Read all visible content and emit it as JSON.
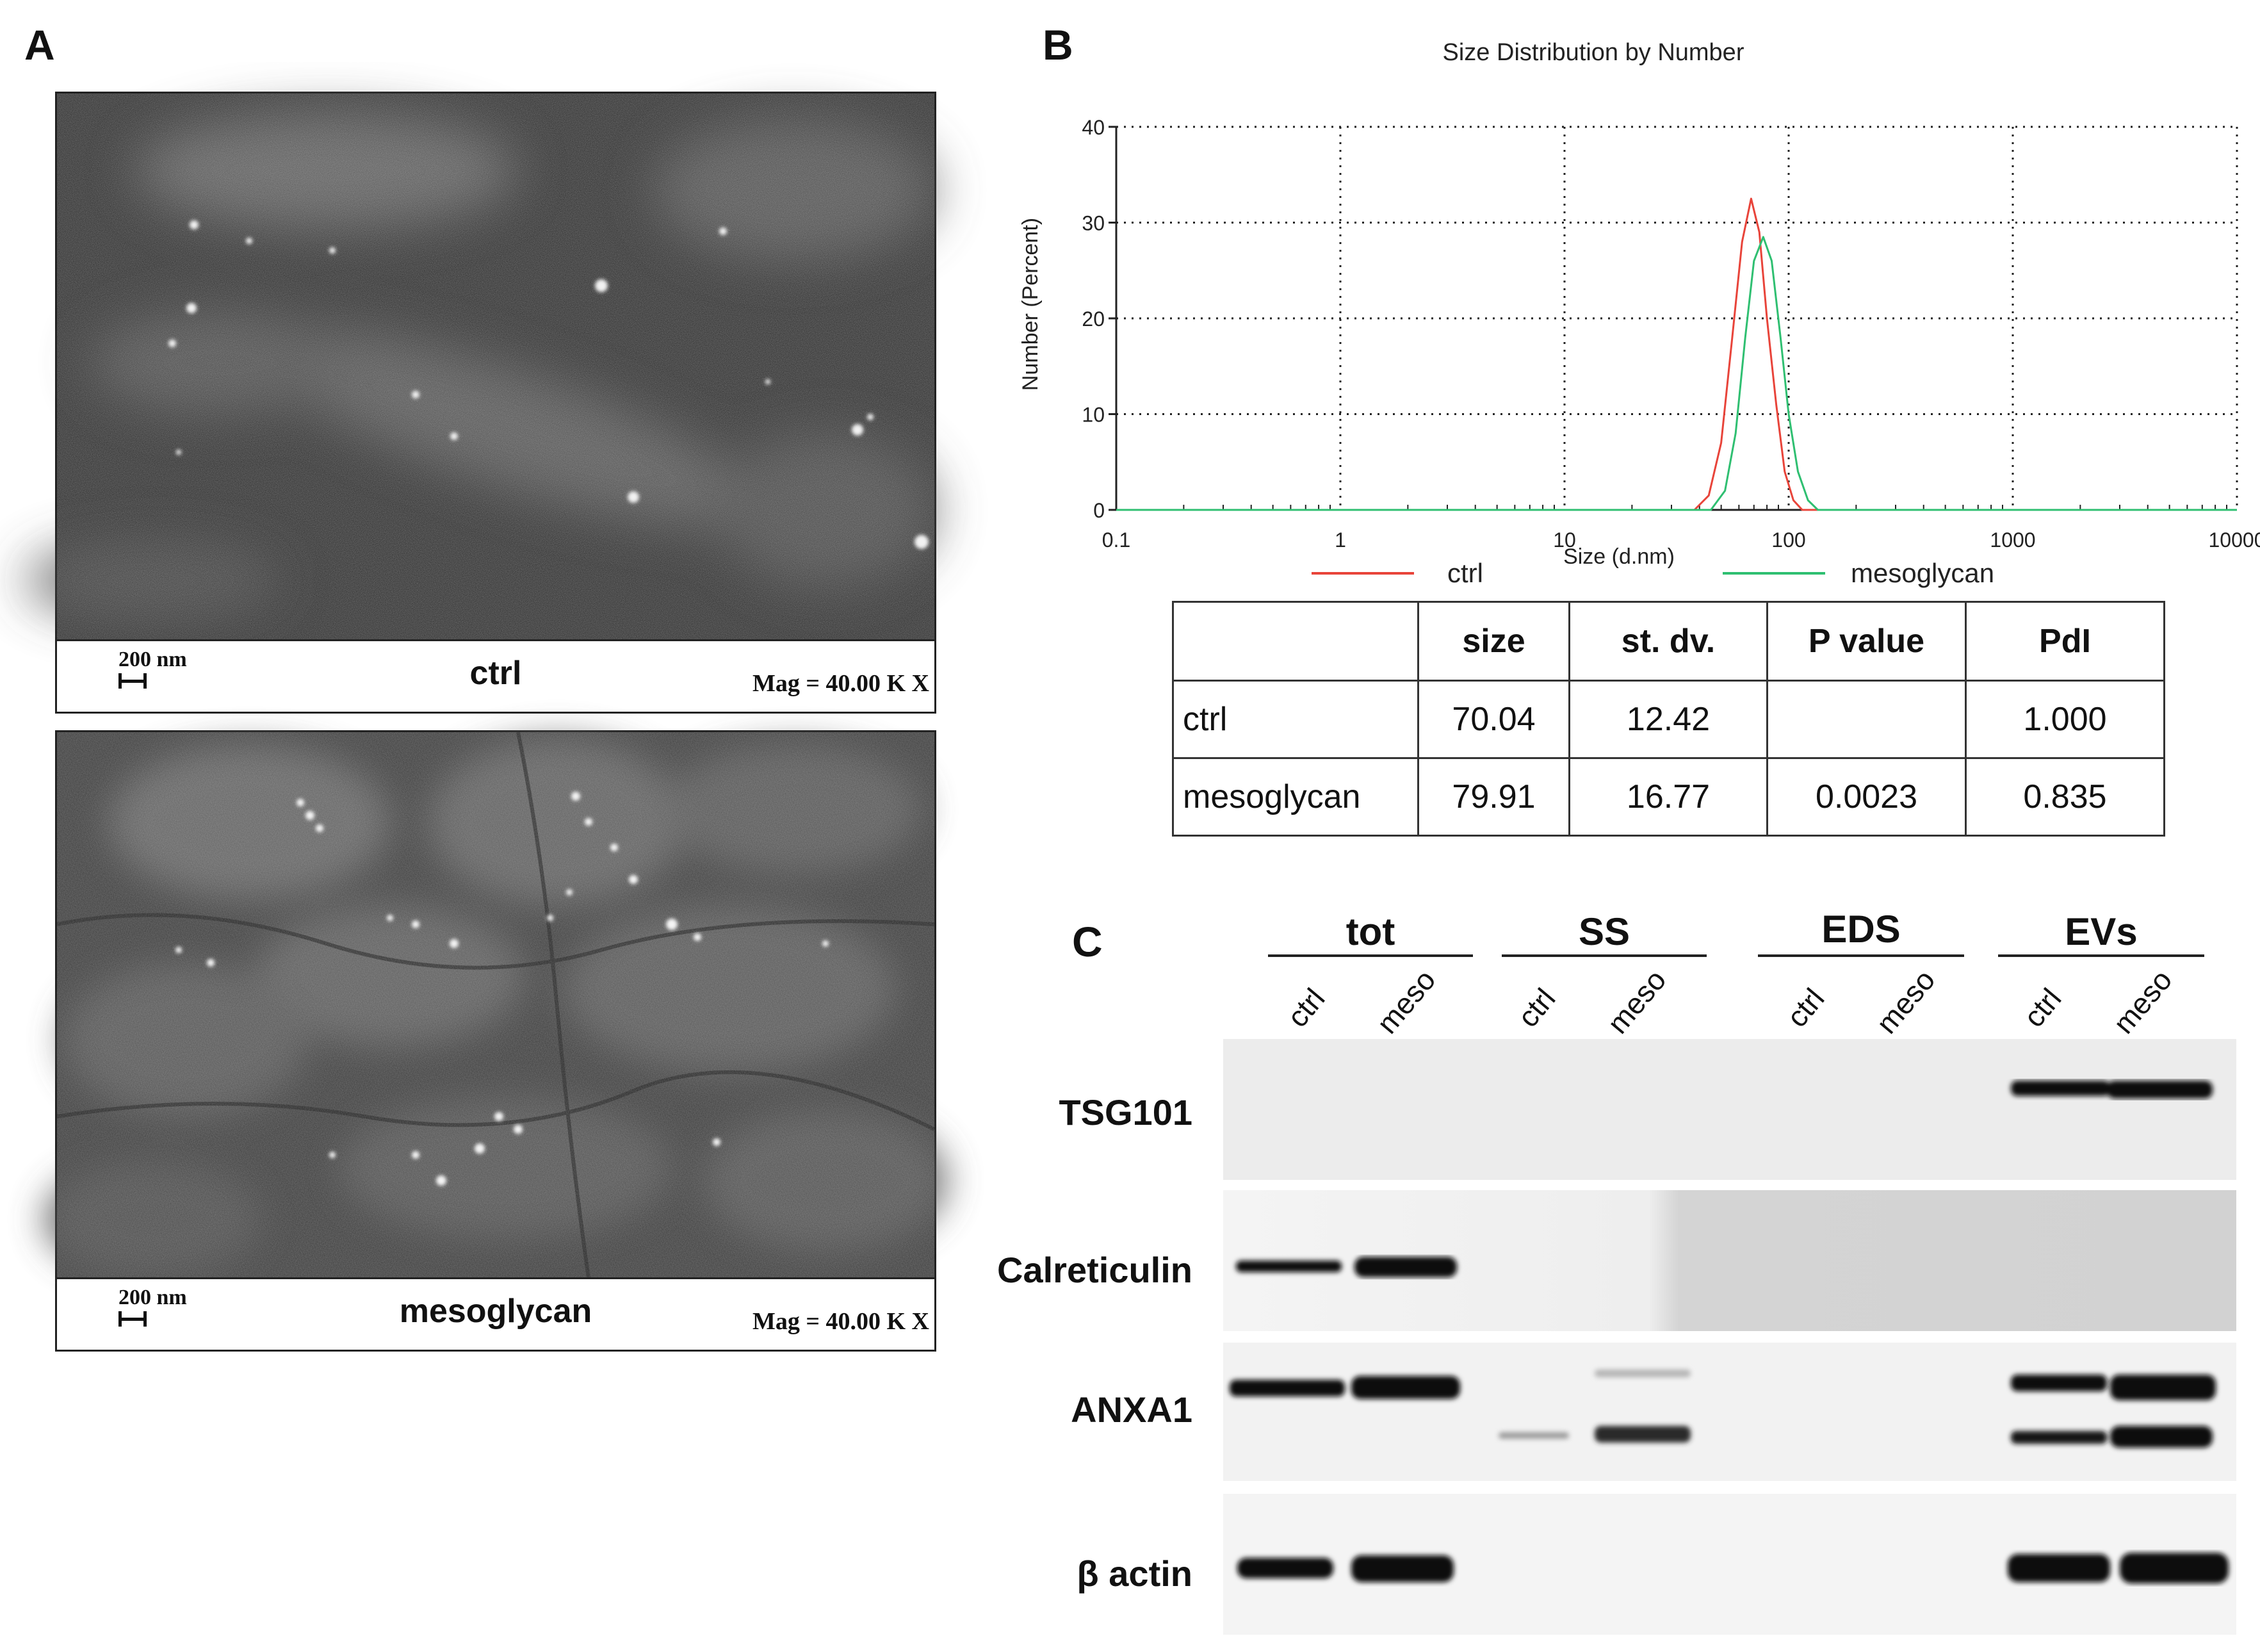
{
  "panel_letters": {
    "a": "A",
    "b": "B",
    "c": "C"
  },
  "panel_a": {
    "images": [
      {
        "label": "ctrl",
        "scale_text": "200 nm",
        "mag_text": "Mag =  40.00 K X"
      },
      {
        "label": "mesoglycan",
        "scale_text": "200 nm",
        "mag_text": "Mag =  40.00 K X"
      }
    ]
  },
  "chart_data": {
    "type": "line",
    "title": "Size Distribution by Number",
    "xlabel": "Size (d.nm)",
    "ylabel": "Number (Percent)",
    "x_scale": "log",
    "xlim": [
      0.1,
      10000
    ],
    "ylim": [
      0,
      40
    ],
    "x_ticks": [
      "0.1",
      "1",
      "10",
      "100",
      "1000",
      "10000"
    ],
    "y_ticks": [
      "0",
      "10",
      "20",
      "30",
      "40"
    ],
    "grid": "dotted",
    "legend_position": "bottom",
    "series": [
      {
        "name": "ctrl",
        "color": "#e8443a",
        "x": [
          0.1,
          38,
          44,
          50,
          56,
          62,
          68,
          74,
          80,
          88,
          96,
          105,
          115,
          10000
        ],
        "y": [
          0,
          0,
          1.5,
          7,
          18,
          28,
          32.5,
          29,
          20,
          11,
          4,
          1,
          0,
          0
        ]
      },
      {
        "name": "mesoglycan",
        "color": "#2fbf71",
        "x": [
          0.1,
          45,
          52,
          58,
          64,
          70,
          77,
          84,
          92,
          100,
          110,
          122,
          135,
          10000
        ],
        "y": [
          0,
          0,
          2,
          8,
          18,
          26,
          28.5,
          26,
          18,
          10,
          4,
          1,
          0,
          0
        ]
      }
    ]
  },
  "dls_table": {
    "headers": [
      "",
      "size",
      "st. dv.",
      "P value",
      "PdI"
    ],
    "rows": [
      [
        "ctrl",
        "70.04",
        "12.42",
        "",
        "1.000"
      ],
      [
        "mesoglycan",
        "79.91",
        "16.77",
        "0.0023",
        "0.835"
      ]
    ]
  },
  "panel_c": {
    "groups": [
      "tot",
      "SS",
      "EDS",
      "EVs"
    ],
    "lanes": [
      "ctrl",
      "meso",
      "ctrl",
      "meso",
      "ctrl",
      "meso",
      "ctrl",
      "meso"
    ],
    "proteins": [
      "TSG101",
      "Calreticulin",
      "ANXA1",
      "β actin"
    ]
  }
}
